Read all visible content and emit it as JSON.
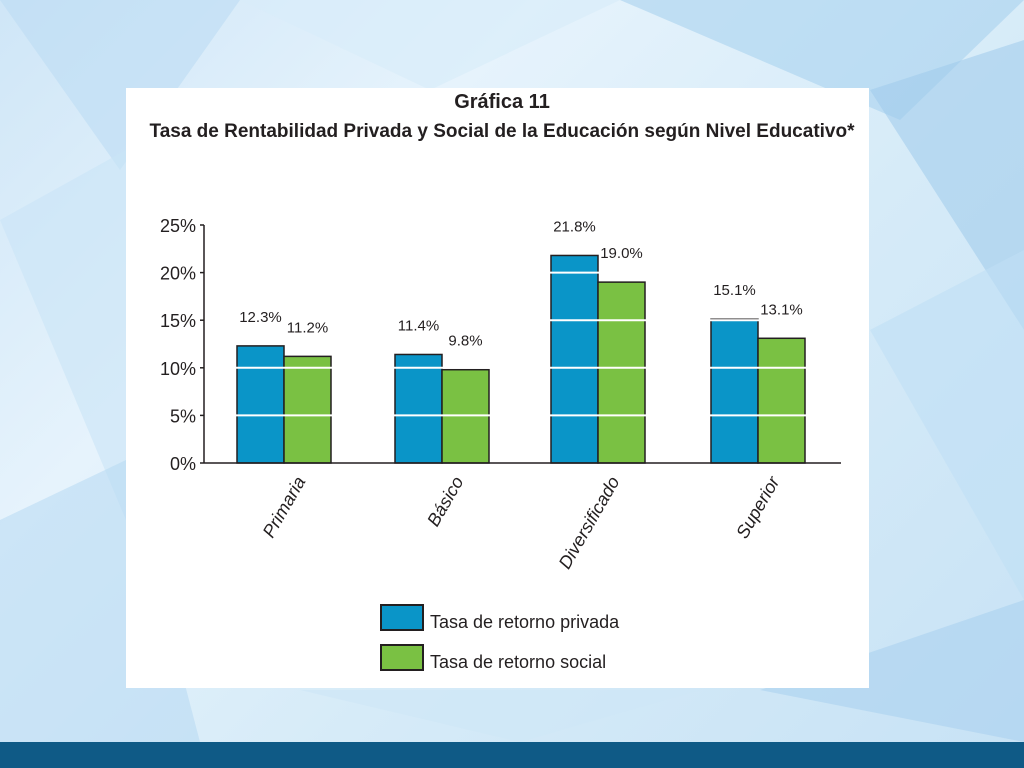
{
  "colors": {
    "private": "#0a95c8",
    "social": "#7ac143",
    "bar_outline": "#231f20",
    "bottom_band": "#0f5a86"
  },
  "chart_data": {
    "type": "bar",
    "title": "Gráfica 11",
    "subtitle": "Tasa de Rentabilidad Privada y Social de la Educación según Nivel Educativo*",
    "categories": [
      "Primaria",
      "Básico",
      "Diversificado",
      "Superior"
    ],
    "series": [
      {
        "name": "Tasa de retorno privada",
        "values": [
          12.3,
          11.4,
          21.8,
          15.1
        ],
        "labels": [
          "12.3%",
          "11.4%",
          "21.8%",
          "15.1%"
        ]
      },
      {
        "name": "Tasa de retorno social",
        "values": [
          11.2,
          9.8,
          19.0,
          13.1
        ],
        "labels": [
          "11.2%",
          "9.8%",
          "19.0%",
          "13.1%"
        ]
      }
    ],
    "y_ticks": [
      0,
      5,
      10,
      15,
      20,
      25
    ],
    "y_tick_labels": [
      "0%",
      "5%",
      "10%",
      "15%",
      "20%",
      "25%"
    ],
    "ylim": [
      0,
      25
    ],
    "xlabel": "",
    "ylabel": "",
    "grid": "white lines across bars",
    "legend_position": "bottom"
  }
}
